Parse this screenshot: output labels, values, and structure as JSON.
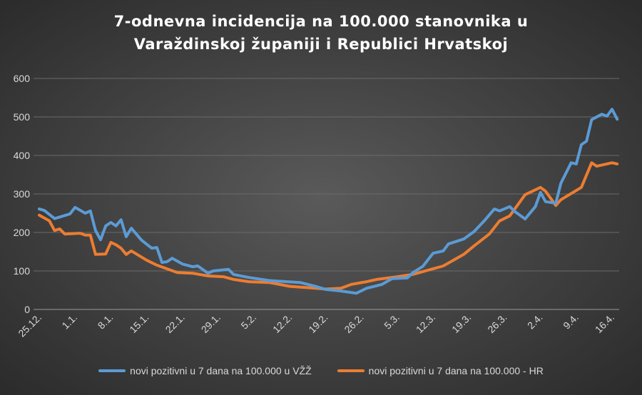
{
  "chart_data": {
    "type": "line",
    "title": "7-odnevna incidencija na 100.000 stanovnika u Varaždinskoj županiji i Republici Hrvatskoj",
    "title_lines": [
      "7-odnevna incidencija na 100.000 stanovnika u",
      "Varaždinskoj županiji i Republici Hrvatskoj"
    ],
    "xlabel": "",
    "ylabel": "",
    "ylim": [
      0,
      600
    ],
    "yticks": [
      "0",
      "100",
      "200",
      "300",
      "400",
      "500",
      "600"
    ],
    "xticks": [
      "25.12.",
      "1.1.",
      "8.1.",
      "15.1.",
      "22.1.",
      "29.1.",
      "5.2.",
      "12.2.",
      "19.2.",
      "26.2.",
      "5.3.",
      "12.3.",
      "19.3.",
      "26.3.",
      "2.4.",
      "9.4.",
      "16.4."
    ],
    "grid": true,
    "legend_position": "bottom",
    "series": [
      {
        "name": "novi pozitivni u 7 dana na 100.000 u VŽŽ",
        "color": "#5b9bd5",
        "x": [
          "25.12.",
          "26.12.",
          "28.12.",
          "31.12.",
          "1.1.",
          "3.1.",
          "4.1.",
          "5.1.",
          "6.1.",
          "7.1.",
          "8.1.",
          "9.1.",
          "10.1.",
          "11.1.",
          "12.1.",
          "14.1.",
          "16.1.",
          "17.1.",
          "18.1.",
          "19.1.",
          "20.1.",
          "22.1.",
          "24.1.",
          "25.1.",
          "27.1.",
          "28.1.",
          "31.1.",
          "1.2.",
          "4.2.",
          "8.2.",
          "14.2.",
          "17.2.",
          "19.2.",
          "22.2.",
          "25.2.",
          "27.2.",
          "2.3.",
          "4.3.",
          "7.3.",
          "8.3.",
          "10.3.",
          "12.3.",
          "14.3.",
          "15.3.",
          "18.3.",
          "20.3.",
          "22.3.",
          "24.3.",
          "25.3.",
          "27.3.",
          "28.3.",
          "30.3.",
          "1.4.",
          "2.4.",
          "3.4.",
          "5.4.",
          "6.4.",
          "8.4.",
          "9.4.",
          "10.4.",
          "11.4.",
          "12.4.",
          "14.4.",
          "15.4.",
          "16.4.",
          "17.4."
        ],
        "values": [
          261,
          257,
          236,
          248,
          265,
          250,
          256,
          205,
          181,
          217,
          226,
          217,
          233,
          189,
          211,
          180,
          159,
          161,
          122,
          124,
          133,
          118,
          111,
          113,
          94,
          100,
          104,
          91,
          83,
          75,
          70,
          60,
          52,
          48,
          42,
          55,
          65,
          80,
          82,
          95,
          112,
          146,
          152,
          170,
          183,
          202,
          230,
          261,
          256,
          267,
          254,
          235,
          267,
          304,
          280,
          276,
          328,
          381,
          378,
          428,
          437,
          493,
          507,
          502,
          520,
          494
        ]
      },
      {
        "name": "novi pozitivni u 7 dana na 100.000 - HR",
        "color": "#ed7d31",
        "x": [
          "25.12.",
          "27.12.",
          "28.12.",
          "29.12.",
          "30.12.",
          "2.1.",
          "3.1.",
          "4.1.",
          "5.1.",
          "7.1.",
          "8.1.",
          "9.1.",
          "10.1.",
          "11.1.",
          "12.1.",
          "15.1.",
          "17.1.",
          "21.1.",
          "24.1.",
          "27.1.",
          "30.1.",
          "1.2.",
          "4.2.",
          "8.2.",
          "12.2.",
          "17.2.",
          "19.2.",
          "22.2.",
          "24.2.",
          "27.2.",
          "1.3.",
          "5.3.",
          "8.3.",
          "14.3.",
          "18.3.",
          "20.3.",
          "23.3.",
          "25.3.",
          "27.3.",
          "30.3.",
          "2.4.",
          "3.4.",
          "5.4.",
          "6.4.",
          "10.4.",
          "12.4.",
          "13.4.",
          "16.4.",
          "17.4."
        ],
        "values": [
          245,
          230,
          205,
          209,
          196,
          198,
          193,
          193,
          143,
          144,
          174,
          168,
          159,
          143,
          152,
          128,
          115,
          96,
          94,
          87,
          85,
          78,
          72,
          70,
          60,
          55,
          53,
          55,
          65,
          72,
          78,
          85,
          91,
          113,
          143,
          165,
          196,
          230,
          243,
          298,
          317,
          307,
          270,
          285,
          317,
          381,
          372,
          381,
          378
        ]
      }
    ]
  }
}
